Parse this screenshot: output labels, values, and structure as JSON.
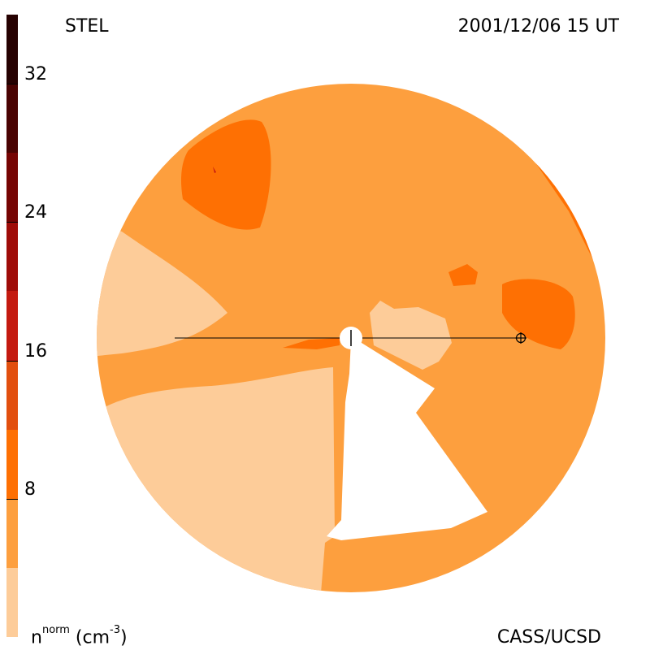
{
  "corner_labels": {
    "top_left": "STEL",
    "top_right": "2001/12/06 15 UT",
    "bottom_right": "CASS/UCSD"
  },
  "colorbar": {
    "unit_base": "n",
    "unit_sup": "norm",
    "unit_rest": " (cm",
    "unit_exp": "-3",
    "unit_close": ")",
    "ticks": [
      {
        "label": "32",
        "value": 32
      },
      {
        "label": "24",
        "value": 24
      },
      {
        "label": "16",
        "value": 16
      },
      {
        "label": "8",
        "value": 8
      }
    ],
    "levels": [
      {
        "from": 0,
        "to": 4,
        "color": "#fdcc99"
      },
      {
        "from": 4,
        "to": 8,
        "color": "#fd9f3e"
      },
      {
        "from": 8,
        "to": 12,
        "color": "#fe7003"
      },
      {
        "from": 12,
        "to": 16,
        "color": "#e24f0e"
      },
      {
        "from": 16,
        "to": 20,
        "color": "#c41a10"
      },
      {
        "from": 20,
        "to": 24,
        "color": "#9f0c08"
      },
      {
        "from": 24,
        "to": 28,
        "color": "#760403"
      },
      {
        "from": 28,
        "to": 32,
        "color": "#4a0302"
      },
      {
        "from": 32,
        "to": 36,
        "color": "#260101"
      }
    ]
  },
  "colors": {
    "disk_base": "#fd9f3e",
    "low_density": "#fdcc99",
    "high_density": "#fe7003",
    "background": "#ffffff",
    "line": "#000000"
  }
}
